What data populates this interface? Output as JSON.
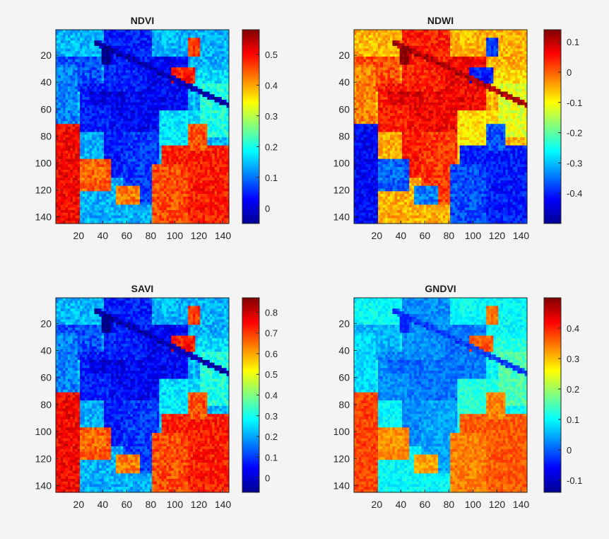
{
  "chart_data": [
    {
      "type": "heatmap",
      "title": "NDVI",
      "colormap": "jet",
      "x_ticks": [
        "20",
        "40",
        "60",
        "80",
        "100",
        "120",
        "140"
      ],
      "y_ticks": [
        "20",
        "40",
        "60",
        "80",
        "100",
        "120",
        "140"
      ],
      "x_range": [
        1,
        145
      ],
      "y_range": [
        1,
        145
      ],
      "colorbar": {
        "min": -0.05,
        "max": 0.58,
        "ticks": [
          "0",
          "0.1",
          "0.2",
          "0.3",
          "0.4",
          "0.5"
        ]
      },
      "value_map_description_regions": [
        {
          "label": "field_high_left",
          "value": 0.55
        },
        {
          "label": "field_low_center",
          "value": 0.08
        },
        {
          "label": "forest_lower_right",
          "value": 0.55
        }
      ]
    },
    {
      "type": "heatmap",
      "title": "NDWI",
      "colormap": "jet",
      "x_ticks": [
        "20",
        "40",
        "60",
        "80",
        "100",
        "120",
        "140"
      ],
      "y_ticks": [
        "20",
        "40",
        "60",
        "80",
        "100",
        "120",
        "140"
      ],
      "x_range": [
        1,
        145
      ],
      "y_range": [
        1,
        145
      ],
      "colorbar": {
        "min": -0.5,
        "max": 0.14,
        "ticks": [
          "0.1",
          "0",
          "-0.1",
          "-0.2",
          "-0.3",
          "-0.4"
        ]
      }
    },
    {
      "type": "heatmap",
      "title": "SAVI",
      "colormap": "jet",
      "x_ticks": [
        "20",
        "40",
        "60",
        "80",
        "100",
        "120",
        "140"
      ],
      "y_ticks": [
        "20",
        "40",
        "60",
        "80",
        "100",
        "120",
        "140"
      ],
      "x_range": [
        1,
        145
      ],
      "y_range": [
        1,
        145
      ],
      "colorbar": {
        "min": -0.07,
        "max": 0.87,
        "ticks": [
          "0",
          "0.1",
          "0.2",
          "0.3",
          "0.4",
          "0.5",
          "0.6",
          "0.7",
          "0.8"
        ]
      }
    },
    {
      "type": "heatmap",
      "title": "GNDVI",
      "colormap": "jet",
      "x_ticks": [
        "20",
        "40",
        "60",
        "80",
        "100",
        "120",
        "140"
      ],
      "y_ticks": [
        "20",
        "40",
        "60",
        "80",
        "100",
        "120",
        "140"
      ],
      "x_range": [
        1,
        145
      ],
      "y_range": [
        1,
        145
      ],
      "colorbar": {
        "min": -0.14,
        "max": 0.5,
        "ticks": [
          "0.4",
          "0.3",
          "0.2",
          "0.1",
          "0",
          "-0.1"
        ]
      }
    }
  ],
  "colors": {
    "background": "#f4f4f4",
    "axis": "#262626"
  }
}
